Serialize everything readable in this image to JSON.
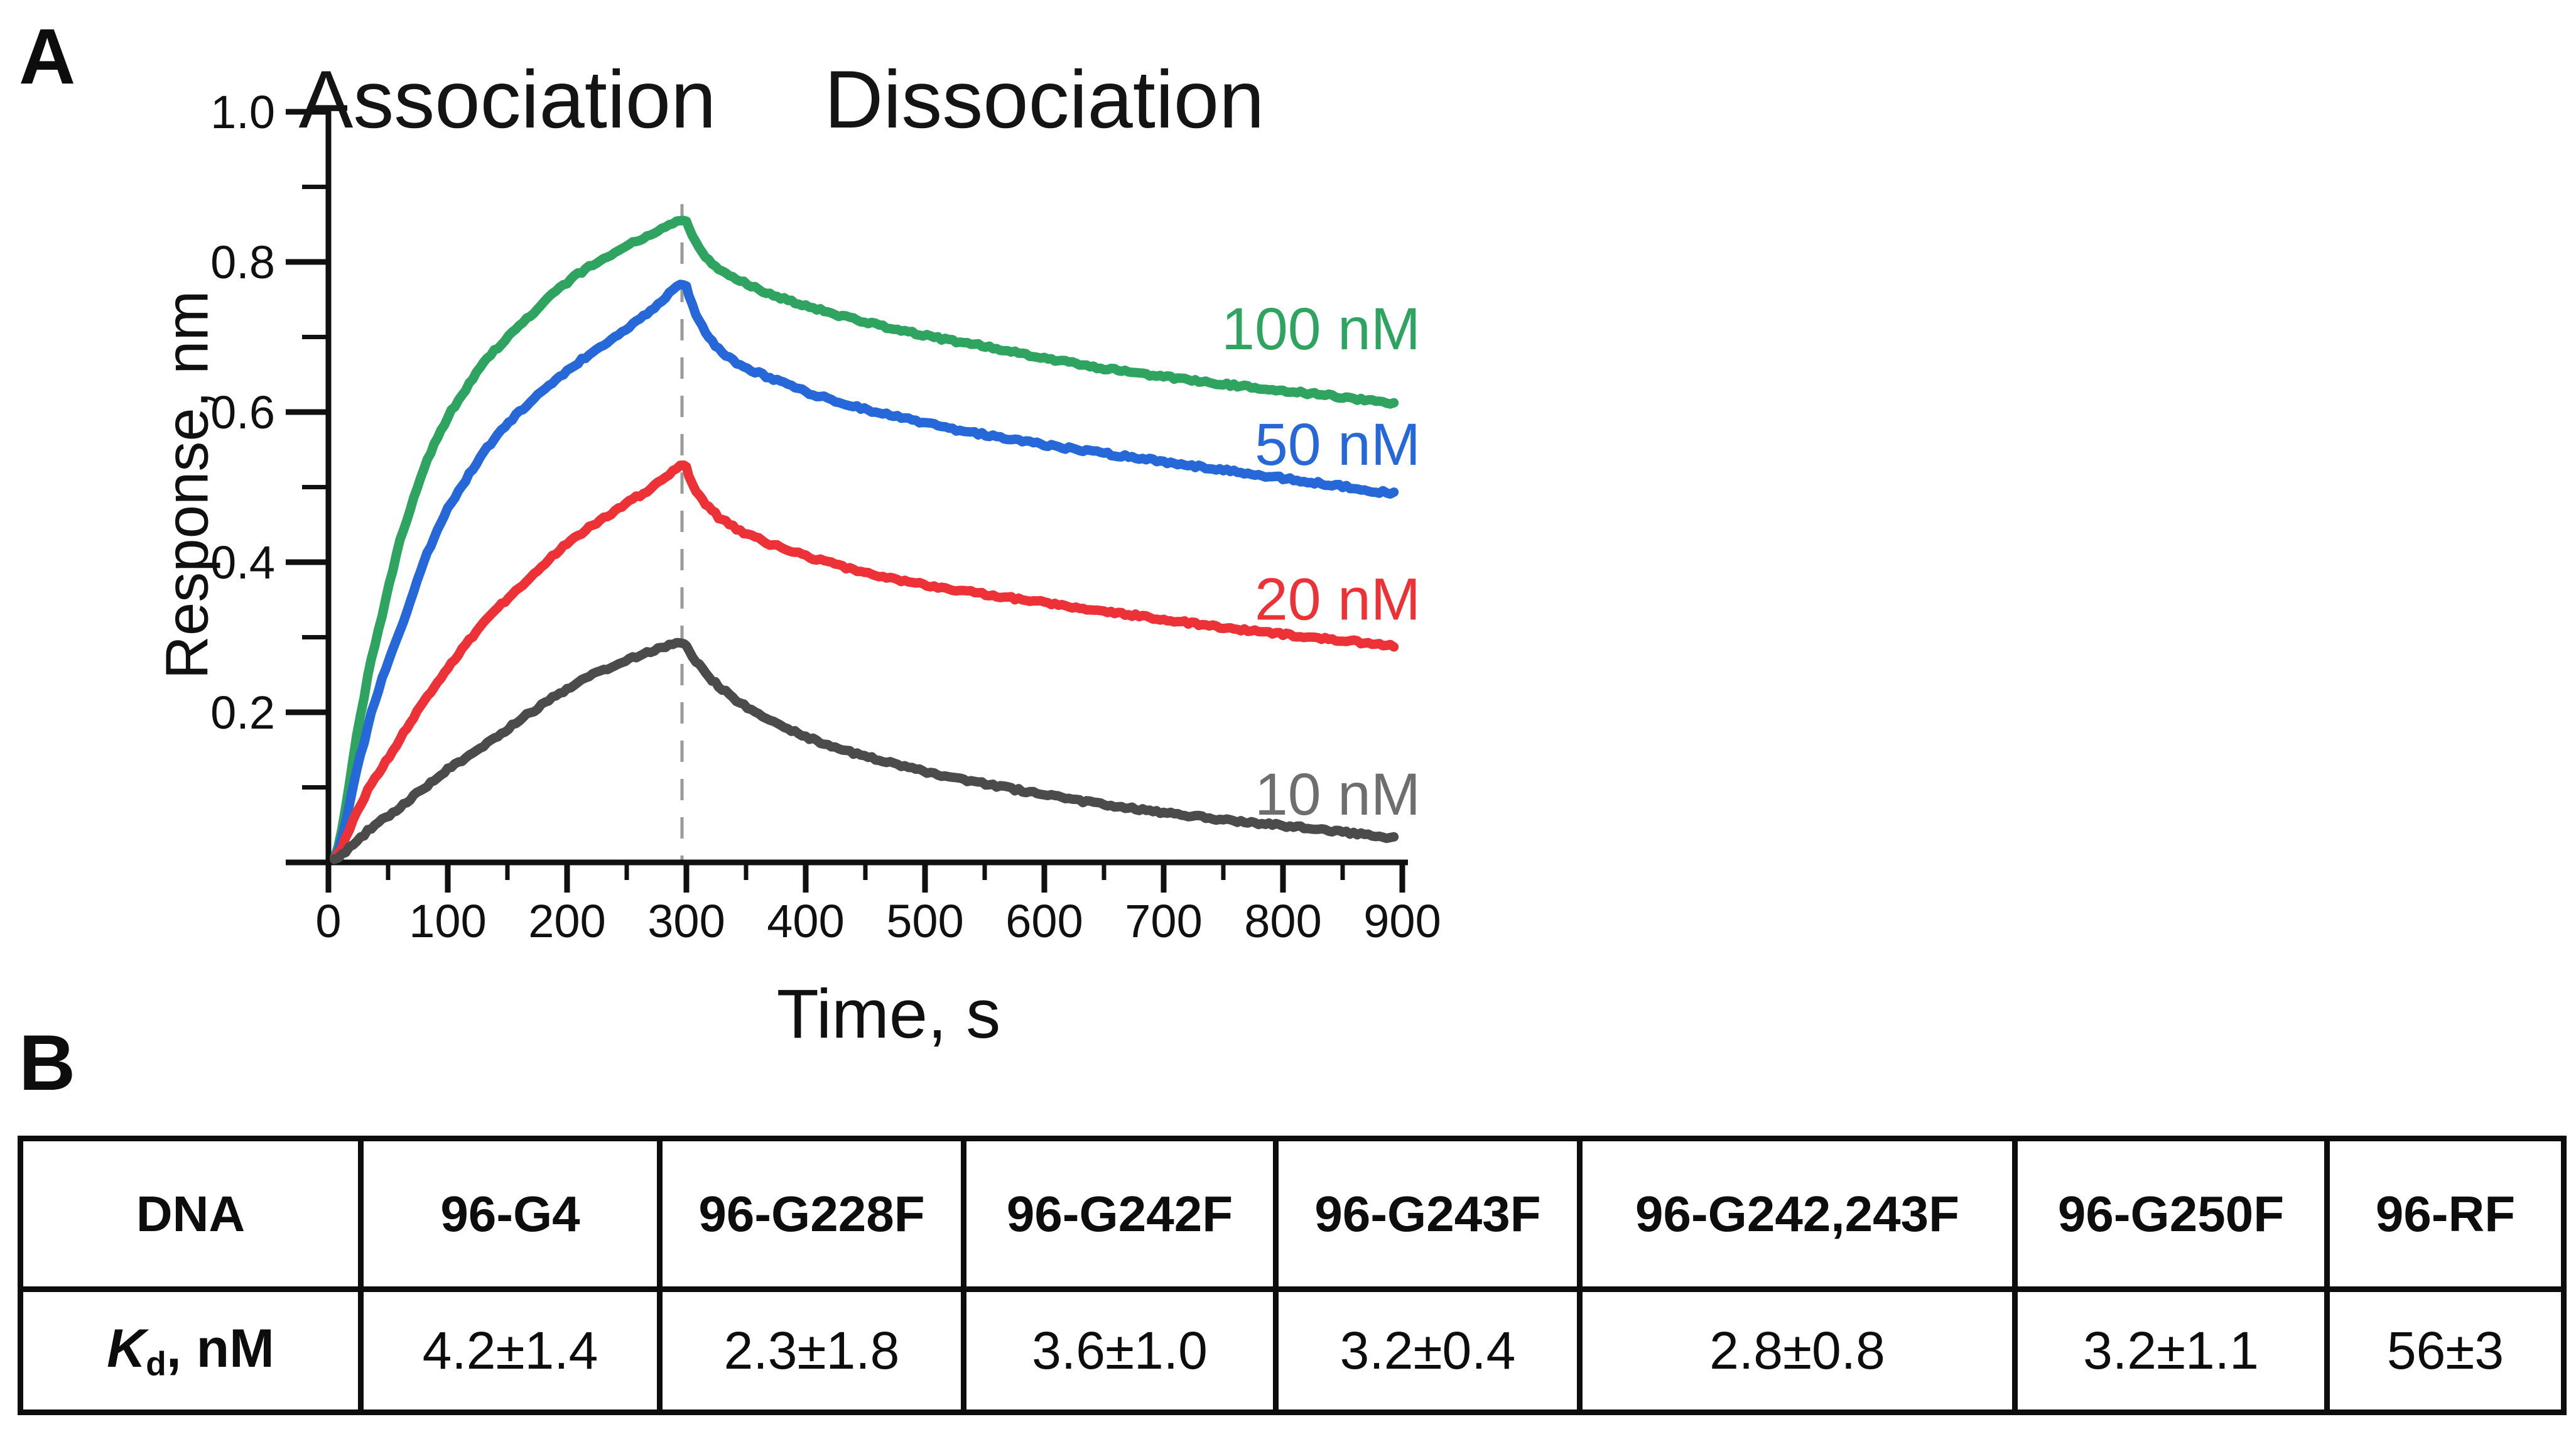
{
  "figure": {
    "background": "#ffffff",
    "panel_a": {
      "label": "A"
    },
    "panel_b": {
      "label": "B",
      "table": {
        "corner_header": "DNA",
        "column_headers": [
          "96-G4",
          "96-G228F",
          "96-G242F",
          "96-G243F",
          "96-G242,243F",
          "96-G250F",
          "96-RF"
        ],
        "row_label": {
          "symbol": "K",
          "subscript": "d",
          "suffix": ", nM"
        },
        "values": [
          "4.2±1.4",
          "2.3±1.8",
          "3.6±1.0",
          "3.2±0.4",
          "2.8±0.8",
          "3.2±1.1",
          "56±3"
        ]
      }
    }
  },
  "chart_data": {
    "type": "line",
    "title": "",
    "xlabel": "Time, s",
    "ylabel": "Response, nm",
    "xlim": [
      0,
      900
    ],
    "ylim": [
      0,
      1.0
    ],
    "grid": false,
    "x_major_ticks": [
      0,
      100,
      200,
      300,
      400,
      500,
      600,
      700,
      800,
      900
    ],
    "x_minor_ticks": [
      50,
      150,
      250,
      350,
      450,
      550,
      650,
      750,
      850
    ],
    "y_major_ticks": [
      1.0,
      0.8,
      0.6,
      0.4,
      0.2
    ],
    "y_minor_ticks": [
      0.9,
      0.7,
      0.5,
      0.3,
      0.1
    ],
    "phase_divider_t": 300,
    "divider_color": "#9a9a9a",
    "axis_color": "#101010",
    "phases": [
      {
        "label": "Association",
        "t_center": 150
      },
      {
        "label": "Dissociation",
        "t_center": 600
      }
    ],
    "series": [
      {
        "name": "100 nM",
        "color": "#2fa360",
        "label_color": "#2fa360",
        "label_level": 0.712,
        "points": [
          [
            5,
            0.004
          ],
          [
            30,
            0.22
          ],
          [
            45,
            0.33
          ],
          [
            60,
            0.43
          ],
          [
            80,
            0.525
          ],
          [
            100,
            0.595
          ],
          [
            130,
            0.665
          ],
          [
            160,
            0.715
          ],
          [
            200,
            0.772
          ],
          [
            240,
            0.812
          ],
          [
            270,
            0.836
          ],
          [
            298,
            0.856
          ],
          [
            302,
            0.845
          ],
          [
            308,
            0.825
          ],
          [
            316,
            0.806
          ],
          [
            327,
            0.792
          ],
          [
            345,
            0.776
          ],
          [
            370,
            0.758
          ],
          [
            400,
            0.742
          ],
          [
            440,
            0.724
          ],
          [
            480,
            0.708
          ],
          [
            520,
            0.695
          ],
          [
            560,
            0.684
          ],
          [
            600,
            0.672
          ],
          [
            650,
            0.659
          ],
          [
            700,
            0.648
          ],
          [
            750,
            0.637
          ],
          [
            800,
            0.628
          ],
          [
            850,
            0.619
          ],
          [
            893,
            0.611
          ]
        ]
      },
      {
        "name": "50 nM",
        "color": "#2668d8",
        "label_color": "#2668d8",
        "label_level": 0.558,
        "points": [
          [
            5,
            0.004
          ],
          [
            30,
            0.16
          ],
          [
            45,
            0.245
          ],
          [
            60,
            0.31
          ],
          [
            80,
            0.4
          ],
          [
            100,
            0.47
          ],
          [
            130,
            0.545
          ],
          [
            160,
            0.6
          ],
          [
            200,
            0.655
          ],
          [
            240,
            0.7
          ],
          [
            270,
            0.735
          ],
          [
            298,
            0.772
          ],
          [
            302,
            0.755
          ],
          [
            308,
            0.73
          ],
          [
            316,
            0.706
          ],
          [
            327,
            0.684
          ],
          [
            345,
            0.663
          ],
          [
            370,
            0.645
          ],
          [
            400,
            0.626
          ],
          [
            440,
            0.607
          ],
          [
            480,
            0.592
          ],
          [
            520,
            0.579
          ],
          [
            560,
            0.568
          ],
          [
            600,
            0.557
          ],
          [
            650,
            0.545
          ],
          [
            700,
            0.533
          ],
          [
            750,
            0.522
          ],
          [
            800,
            0.512
          ],
          [
            850,
            0.502
          ],
          [
            893,
            0.493
          ]
        ]
      },
      {
        "name": "20 nM",
        "color": "#ed3237",
        "label_color": "#ed3237",
        "label_level": 0.352,
        "points": [
          [
            5,
            0.004
          ],
          [
            30,
            0.085
          ],
          [
            45,
            0.125
          ],
          [
            60,
            0.165
          ],
          [
            80,
            0.215
          ],
          [
            100,
            0.26
          ],
          [
            130,
            0.32
          ],
          [
            160,
            0.368
          ],
          [
            200,
            0.425
          ],
          [
            240,
            0.468
          ],
          [
            270,
            0.497
          ],
          [
            298,
            0.528
          ],
          [
            302,
            0.515
          ],
          [
            308,
            0.495
          ],
          [
            316,
            0.477
          ],
          [
            327,
            0.459
          ],
          [
            345,
            0.441
          ],
          [
            370,
            0.424
          ],
          [
            400,
            0.408
          ],
          [
            440,
            0.391
          ],
          [
            480,
            0.377
          ],
          [
            520,
            0.365
          ],
          [
            560,
            0.355
          ],
          [
            600,
            0.345
          ],
          [
            650,
            0.334
          ],
          [
            700,
            0.324
          ],
          [
            750,
            0.314
          ],
          [
            800,
            0.305
          ],
          [
            850,
            0.296
          ],
          [
            893,
            0.288
          ]
        ]
      },
      {
        "name": "10 nM",
        "color": "#4b4b4b",
        "label_color": "#6e6e6e",
        "label_level": 0.092,
        "points": [
          [
            5,
            0.004
          ],
          [
            30,
            0.038
          ],
          [
            45,
            0.057
          ],
          [
            60,
            0.075
          ],
          [
            80,
            0.1
          ],
          [
            100,
            0.125
          ],
          [
            130,
            0.155
          ],
          [
            160,
            0.19
          ],
          [
            200,
            0.23
          ],
          [
            240,
            0.262
          ],
          [
            270,
            0.28
          ],
          [
            298,
            0.293
          ],
          [
            302,
            0.283
          ],
          [
            308,
            0.268
          ],
          [
            316,
            0.252
          ],
          [
            327,
            0.235
          ],
          [
            345,
            0.213
          ],
          [
            370,
            0.19
          ],
          [
            400,
            0.168
          ],
          [
            440,
            0.146
          ],
          [
            480,
            0.128
          ],
          [
            520,
            0.113
          ],
          [
            560,
            0.101
          ],
          [
            600,
            0.09
          ],
          [
            650,
            0.078
          ],
          [
            700,
            0.067
          ],
          [
            750,
            0.057
          ],
          [
            800,
            0.048
          ],
          [
            850,
            0.04
          ],
          [
            893,
            0.033
          ]
        ]
      }
    ]
  }
}
